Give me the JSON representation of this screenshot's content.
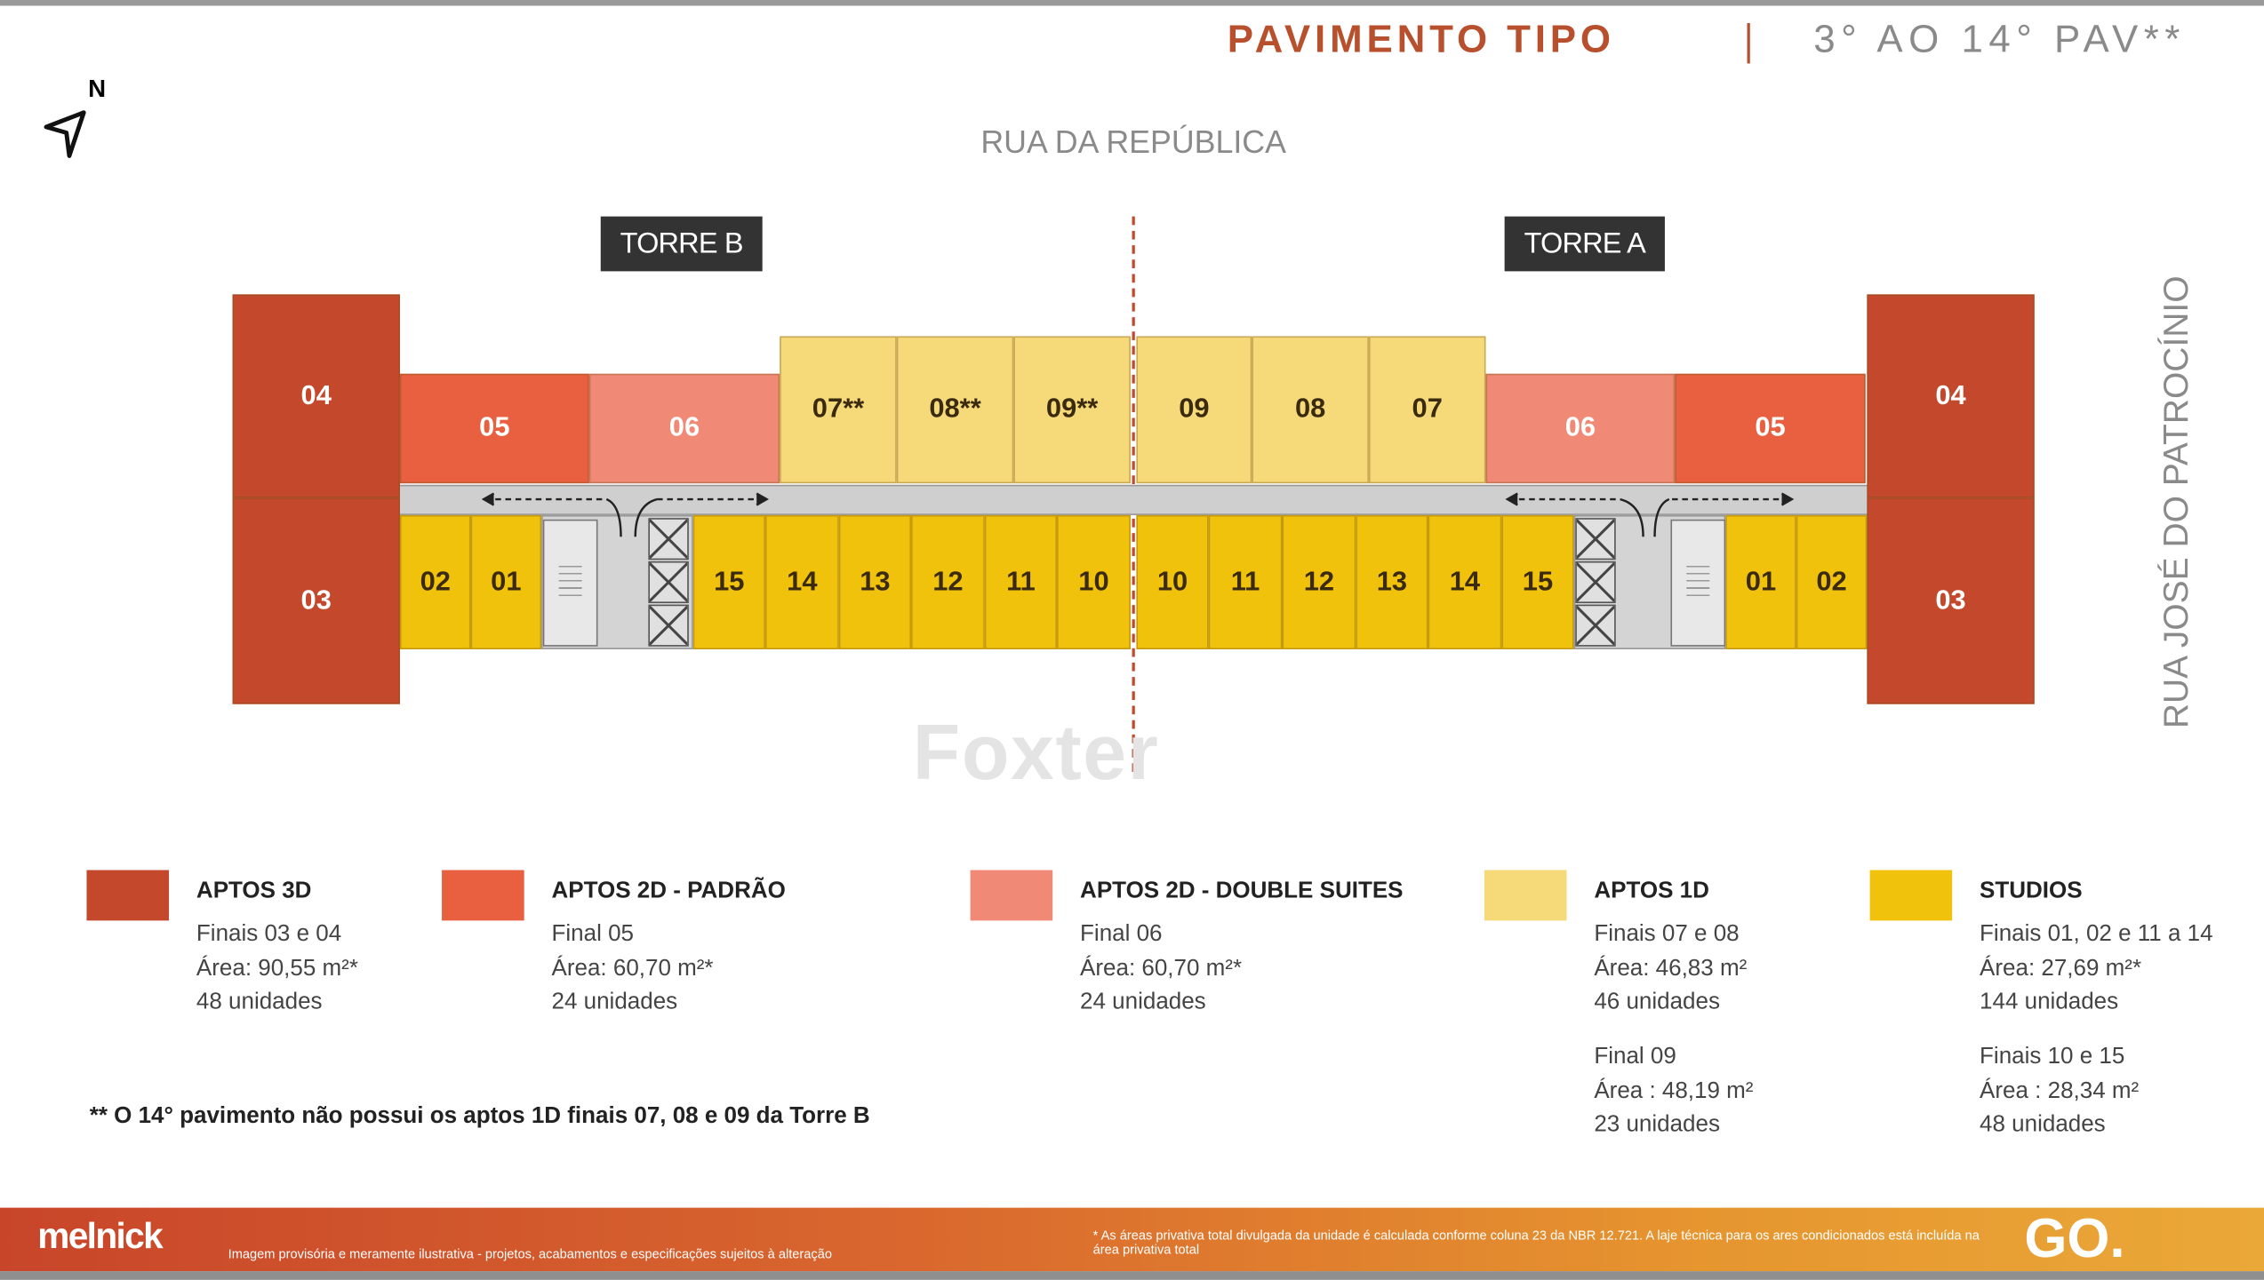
{
  "header": {
    "title": "PAVIMENTO TIPO",
    "subtitle": "3° AO 14° PAV**"
  },
  "compass": {
    "label": "N",
    "icon": "north-arrow-icon"
  },
  "streets": {
    "top": "RUA DA REPÚBLICA",
    "right": "RUA JOSÉ DO PATROCÍNIO"
  },
  "towers": {
    "b": "TORRE B",
    "a": "TORRE A"
  },
  "colors": {
    "aptos_3d": "#c4492c",
    "aptos_2d_padrao": "#e8603f",
    "aptos_2d_double": "#f08a76",
    "aptos_1d": "#f6d978",
    "studios": "#f0c20c",
    "title": "#b8502e"
  },
  "plan": {
    "torre_b_top": [
      {
        "label": "04",
        "type": "aptos_3d"
      },
      {
        "label": "05",
        "type": "aptos_2d_padrao"
      },
      {
        "label": "06",
        "type": "aptos_2d_double"
      },
      {
        "label": "07**",
        "type": "aptos_1d"
      },
      {
        "label": "08**",
        "type": "aptos_1d"
      },
      {
        "label": "09**",
        "type": "aptos_1d"
      }
    ],
    "torre_b_bottom": [
      {
        "label": "03",
        "type": "aptos_3d"
      },
      {
        "label": "02",
        "type": "studios"
      },
      {
        "label": "01",
        "type": "studios"
      },
      {
        "label": "15",
        "type": "studios"
      },
      {
        "label": "14",
        "type": "studios"
      },
      {
        "label": "13",
        "type": "studios"
      },
      {
        "label": "12",
        "type": "studios"
      },
      {
        "label": "11",
        "type": "studios"
      },
      {
        "label": "10",
        "type": "studios"
      }
    ],
    "torre_a_top": [
      {
        "label": "09",
        "type": "aptos_1d"
      },
      {
        "label": "08",
        "type": "aptos_1d"
      },
      {
        "label": "07",
        "type": "aptos_1d"
      },
      {
        "label": "06",
        "type": "aptos_2d_double"
      },
      {
        "label": "05",
        "type": "aptos_2d_padrao"
      },
      {
        "label": "04",
        "type": "aptos_3d"
      }
    ],
    "torre_a_bottom": [
      {
        "label": "10",
        "type": "studios"
      },
      {
        "label": "11",
        "type": "studios"
      },
      {
        "label": "12",
        "type": "studios"
      },
      {
        "label": "13",
        "type": "studios"
      },
      {
        "label": "14",
        "type": "studios"
      },
      {
        "label": "15",
        "type": "studios"
      },
      {
        "label": "01",
        "type": "studios"
      },
      {
        "label": "02",
        "type": "studios"
      },
      {
        "label": "03",
        "type": "aptos_3d"
      }
    ]
  },
  "legend": [
    {
      "title": "APTOS 3D",
      "color": "#c4492c",
      "lines": [
        "Finais 03 e 04",
        "Área: 90,55 m²*",
        "48 unidades"
      ]
    },
    {
      "title": "APTOS 2D - PADRÃO",
      "color": "#e8603f",
      "lines": [
        "Final 05",
        "Área: 60,70 m²*",
        "24 unidades"
      ]
    },
    {
      "title": "APTOS 2D - DOUBLE SUITES",
      "color": "#f08a76",
      "lines": [
        "Final 06",
        "Área: 60,70 m²*",
        "24 unidades"
      ]
    },
    {
      "title": "APTOS 1D",
      "color": "#f6d978",
      "lines": [
        "Finais 07 e 08",
        "Área: 46,83 m²",
        "46 unidades"
      ],
      "lines2": [
        "Final 09",
        "Área : 48,19 m²",
        "23 unidades"
      ]
    },
    {
      "title": "STUDIOS",
      "color": "#f0c20c",
      "lines": [
        "Finais 01, 02 e 11 a 14",
        "Área: 27,69 m²*",
        "144 unidades"
      ],
      "lines2": [
        "Finais 10 e 15",
        "Área : 28,34 m²",
        "48 unidades"
      ]
    }
  ],
  "footnote": "** O 14° pavimento não possui os aptos 1D finais 07, 08 e 09 da Torre B",
  "footer": {
    "logo": "melnick",
    "disclaimer": "Imagem provisória e meramente ilustrativa - projetos, acabamentos e especificações sujeitos à alteração",
    "note": "* As áreas privativa total divulgada da unidade é calculada conforme coluna 23 da NBR 12.721. A laje técnica para os ares condicionados está incluída na área privativa total",
    "brand": "GO."
  },
  "watermark": "Foxter"
}
